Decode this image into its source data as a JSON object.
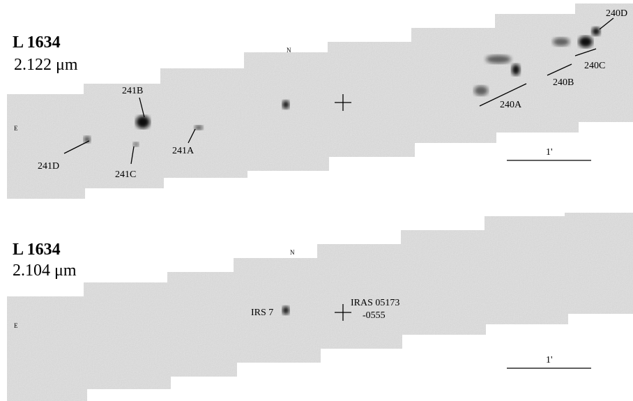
{
  "panels": [
    {
      "object": "L 1634",
      "wavelength": "2.122 μm",
      "north": "N",
      "east": "E",
      "scale": "1'",
      "labels": [
        "240D",
        "240C",
        "240B",
        "240A",
        "241B",
        "241A",
        "241C",
        "241D"
      ]
    },
    {
      "object": "L 1634",
      "wavelength": "2.104 μm",
      "north": "N",
      "east": "E",
      "scale": "1'",
      "labels": [
        "IRS 7",
        "IRAS 05173",
        "-0555"
      ]
    }
  ]
}
